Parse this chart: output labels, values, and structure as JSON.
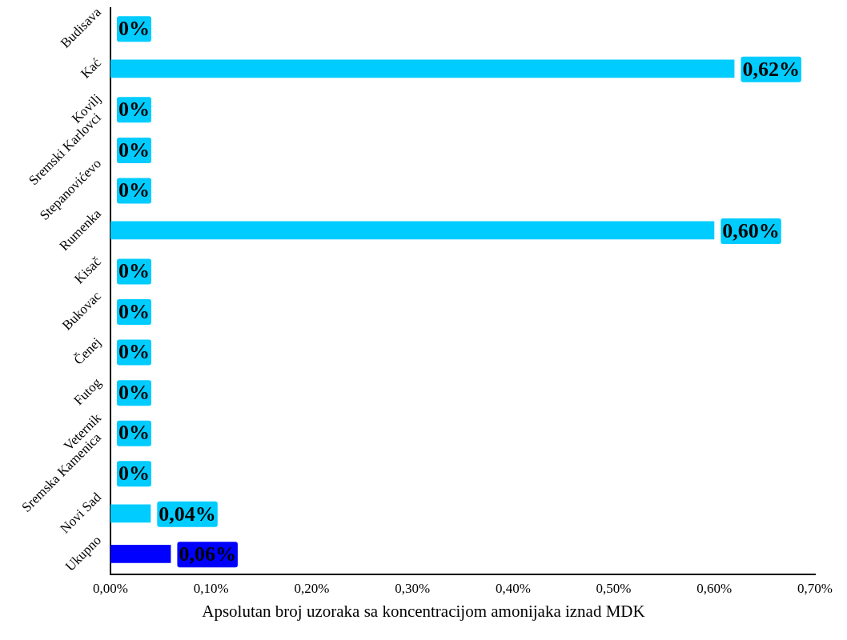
{
  "chart_data": {
    "type": "bar",
    "orientation": "horizontal",
    "xlabel": "Apsolutan broj uzoraka sa koncentracijom amonijaka iznad MDK",
    "categories": [
      "Budisava",
      "Kać",
      "Kovilj",
      "Sremski Karlovci",
      "Stepanovićevo",
      "Rumenka",
      "Kisač",
      "Bukovac",
      "Čenej",
      "Futog",
      "Veternik",
      "Sremska Kamenica",
      "Novi Sad",
      "Ukupno"
    ],
    "values": [
      0,
      0.62,
      0,
      0,
      0,
      0.6,
      0,
      0,
      0,
      0,
      0,
      0,
      0.04,
      0.06
    ],
    "colors": [
      "#00ccff",
      "#00ccff",
      "#00ccff",
      "#00ccff",
      "#00ccff",
      "#00ccff",
      "#00ccff",
      "#00ccff",
      "#00ccff",
      "#00ccff",
      "#00ccff",
      "#00ccff",
      "#00ccff",
      "#0000ff"
    ],
    "value_labels": [
      "0%",
      "0,62%",
      "0%",
      "0%",
      "0%",
      "0,60%",
      "0%",
      "0%",
      "0%",
      "0%",
      "0%",
      "0%",
      "0,04%",
      "0,06%"
    ],
    "xlim": [
      0,
      0.7
    ],
    "xticks": [
      {
        "value": 0,
        "label": "0,00%"
      },
      {
        "value": 0.1,
        "label": "0,10%"
      },
      {
        "value": 0.2,
        "label": "0,20%"
      },
      {
        "value": 0.3,
        "label": "0,30%"
      },
      {
        "value": 0.4,
        "label": "0,40%"
      },
      {
        "value": 0.5,
        "label": "0,50%"
      },
      {
        "value": 0.6,
        "label": "0,60%"
      },
      {
        "value": 0.7,
        "label": "0,70%"
      }
    ],
    "grid": false,
    "legend": false
  }
}
